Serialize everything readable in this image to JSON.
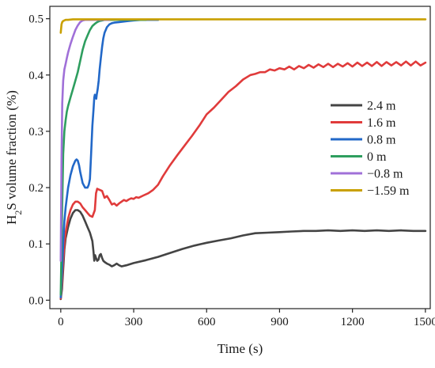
{
  "chart_data": {
    "type": "line",
    "title": "",
    "xlabel": "Time (s)",
    "ylabel": "H₂S volume fraction (%)",
    "ylabel_parts": {
      "pre": "H",
      "sub": "2",
      "post": "S volume fraction (%)"
    },
    "xlim": [
      -45,
      1520
    ],
    "ylim": [
      -0.015,
      0.522
    ],
    "xticks": [
      0,
      300,
      600,
      900,
      1200,
      1500
    ],
    "xtick_labels": [
      "0",
      "300",
      "600",
      "900",
      "1200",
      "1500"
    ],
    "yticks": [
      0.0,
      0.1,
      0.2,
      0.3,
      0.4,
      0.5
    ],
    "ytick_labels": [
      "0.0",
      "0.1",
      "0.2",
      "0.3",
      "0.4",
      "0.5"
    ],
    "grid": false,
    "legend_position": "right",
    "series": [
      {
        "name": "2.4 m",
        "color": "#444444",
        "x": [
          0,
          5,
          10,
          15,
          20,
          30,
          40,
          50,
          60,
          70,
          80,
          90,
          100,
          110,
          120,
          130,
          135,
          138,
          141,
          145,
          150,
          155,
          160,
          165,
          170,
          175,
          180,
          190,
          200,
          210,
          220,
          230,
          240,
          250,
          270,
          300,
          350,
          400,
          450,
          500,
          550,
          600,
          650,
          700,
          750,
          800,
          850,
          900,
          950,
          1000,
          1050,
          1100,
          1150,
          1200,
          1250,
          1300,
          1350,
          1400,
          1450,
          1500
        ],
        "y": [
          0.002,
          0.02,
          0.055,
          0.09,
          0.11,
          0.13,
          0.145,
          0.155,
          0.16,
          0.16,
          0.157,
          0.15,
          0.14,
          0.13,
          0.12,
          0.105,
          0.085,
          0.07,
          0.08,
          0.075,
          0.07,
          0.072,
          0.08,
          0.082,
          0.075,
          0.07,
          0.068,
          0.065,
          0.063,
          0.06,
          0.062,
          0.065,
          0.062,
          0.06,
          0.062,
          0.066,
          0.071,
          0.077,
          0.084,
          0.091,
          0.097,
          0.102,
          0.106,
          0.11,
          0.115,
          0.119,
          0.12,
          0.121,
          0.122,
          0.123,
          0.123,
          0.124,
          0.123,
          0.124,
          0.123,
          0.124,
          0.123,
          0.124,
          0.123,
          0.123
        ]
      },
      {
        "name": "1.6 m",
        "color": "#e03b3b",
        "x": [
          0,
          5,
          10,
          15,
          20,
          30,
          40,
          50,
          60,
          70,
          80,
          90,
          100,
          110,
          120,
          130,
          140,
          145,
          150,
          160,
          170,
          180,
          190,
          200,
          210,
          220,
          230,
          240,
          250,
          260,
          270,
          280,
          290,
          300,
          310,
          320,
          340,
          360,
          380,
          400,
          420,
          450,
          480,
          510,
          540,
          570,
          600,
          630,
          660,
          690,
          720,
          750,
          780,
          800,
          820,
          840,
          860,
          880,
          900,
          920,
          940,
          960,
          980,
          1000,
          1020,
          1040,
          1060,
          1080,
          1100,
          1120,
          1140,
          1160,
          1180,
          1200,
          1220,
          1240,
          1260,
          1280,
          1300,
          1320,
          1340,
          1360,
          1380,
          1400,
          1420,
          1440,
          1460,
          1480,
          1500
        ],
        "y": [
          0.003,
          0.03,
          0.07,
          0.1,
          0.12,
          0.145,
          0.16,
          0.17,
          0.175,
          0.175,
          0.172,
          0.165,
          0.16,
          0.155,
          0.15,
          0.148,
          0.16,
          0.19,
          0.198,
          0.196,
          0.194,
          0.182,
          0.185,
          0.178,
          0.17,
          0.172,
          0.168,
          0.172,
          0.175,
          0.178,
          0.176,
          0.179,
          0.181,
          0.18,
          0.183,
          0.182,
          0.186,
          0.19,
          0.196,
          0.205,
          0.22,
          0.24,
          0.258,
          0.275,
          0.292,
          0.31,
          0.33,
          0.342,
          0.356,
          0.37,
          0.38,
          0.392,
          0.4,
          0.402,
          0.405,
          0.405,
          0.41,
          0.408,
          0.412,
          0.41,
          0.415,
          0.41,
          0.416,
          0.412,
          0.418,
          0.413,
          0.419,
          0.414,
          0.42,
          0.414,
          0.42,
          0.415,
          0.421,
          0.415,
          0.422,
          0.416,
          0.422,
          0.416,
          0.423,
          0.416,
          0.423,
          0.417,
          0.423,
          0.417,
          0.424,
          0.417,
          0.424,
          0.417,
          0.422
        ]
      },
      {
        "name": "0.8 m",
        "color": "#2268c8",
        "x": [
          0,
          5,
          10,
          15,
          20,
          30,
          40,
          50,
          60,
          65,
          70,
          75,
          80,
          90,
          100,
          110,
          115,
          120,
          125,
          130,
          135,
          138,
          140,
          143,
          146,
          148,
          152,
          156,
          160,
          165,
          170,
          175,
          180,
          185,
          190,
          200,
          210,
          220,
          240,
          260,
          280,
          300,
          330,
          360,
          400
        ],
        "y": [
          0.005,
          0.05,
          0.1,
          0.14,
          0.165,
          0.2,
          0.222,
          0.238,
          0.248,
          0.25,
          0.248,
          0.24,
          0.228,
          0.208,
          0.2,
          0.2,
          0.205,
          0.215,
          0.26,
          0.31,
          0.34,
          0.36,
          0.365,
          0.36,
          0.358,
          0.365,
          0.375,
          0.39,
          0.41,
          0.43,
          0.45,
          0.465,
          0.475,
          0.48,
          0.485,
          0.49,
          0.492,
          0.493,
          0.494,
          0.495,
          0.496,
          0.497,
          0.498,
          0.498,
          0.498
        ]
      },
      {
        "name": "0 m",
        "color": "#2e9e5f",
        "x": [
          0,
          5,
          10,
          15,
          20,
          25,
          30,
          40,
          50,
          60,
          70,
          80,
          90,
          100,
          110,
          120,
          130,
          140,
          150,
          160,
          170,
          180,
          200,
          220,
          250,
          300,
          350
        ],
        "y": [
          0.01,
          0.15,
          0.26,
          0.3,
          0.32,
          0.335,
          0.345,
          0.36,
          0.375,
          0.39,
          0.405,
          0.425,
          0.445,
          0.46,
          0.47,
          0.48,
          0.487,
          0.491,
          0.494,
          0.496,
          0.497,
          0.498,
          0.498,
          0.498,
          0.498,
          0.498,
          0.498
        ]
      },
      {
        "name": "−0.8 m",
        "color": "#a070d8",
        "x": [
          0,
          3,
          6,
          10,
          15,
          20,
          25,
          30,
          40,
          50,
          60,
          70,
          80,
          90,
          100,
          110,
          120,
          150,
          200
        ],
        "y": [
          0.07,
          0.25,
          0.35,
          0.39,
          0.41,
          0.42,
          0.43,
          0.44,
          0.455,
          0.468,
          0.48,
          0.488,
          0.494,
          0.497,
          0.498,
          0.498,
          0.498,
          0.498,
          0.498
        ]
      },
      {
        "name": "−1.59 m",
        "color": "#c9a000",
        "x": [
          0,
          3,
          6,
          10,
          15,
          20,
          30,
          50,
          100,
          300,
          600,
          900,
          1200,
          1500
        ],
        "y": [
          0.475,
          0.49,
          0.494,
          0.496,
          0.497,
          0.498,
          0.498,
          0.499,
          0.499,
          0.499,
          0.499,
          0.499,
          0.499,
          0.499
        ]
      }
    ]
  }
}
